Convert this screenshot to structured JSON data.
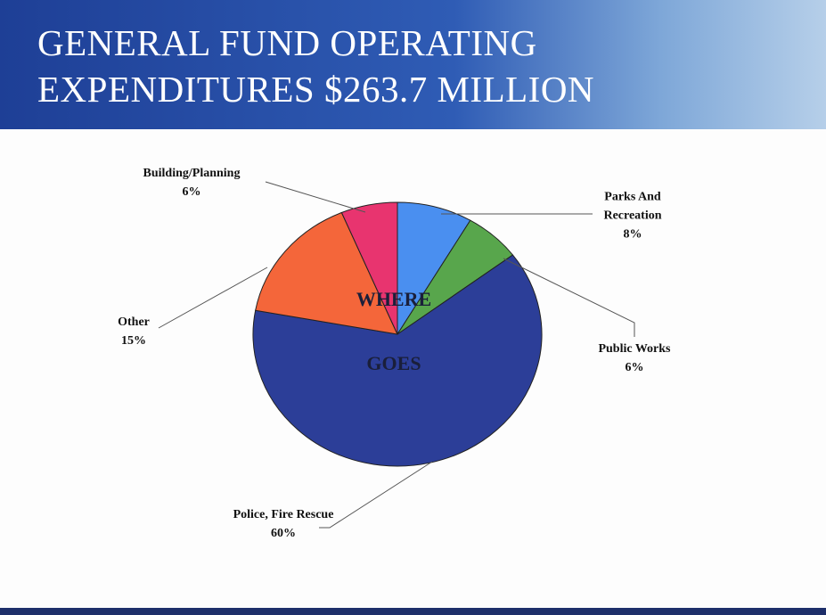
{
  "chart_data": {
    "type": "pie",
    "title": "GENERAL FUND OPERATING EXPENDITURES $263.7 MILLION",
    "annotations": [
      "WHERE",
      "GOES"
    ],
    "categories": [
      "Parks And Recreation",
      "Public Works",
      "Police, Fire Rescue",
      "Other",
      "Building/Planning"
    ],
    "values": [
      8,
      6,
      60,
      15,
      6
    ],
    "value_labels": [
      "8%",
      "6%",
      "60%",
      "15%",
      "6%"
    ],
    "colors": [
      "#4a8ff0",
      "#58a64c",
      "#2c3e98",
      "#f4663a",
      "#e8346f"
    ]
  }
}
